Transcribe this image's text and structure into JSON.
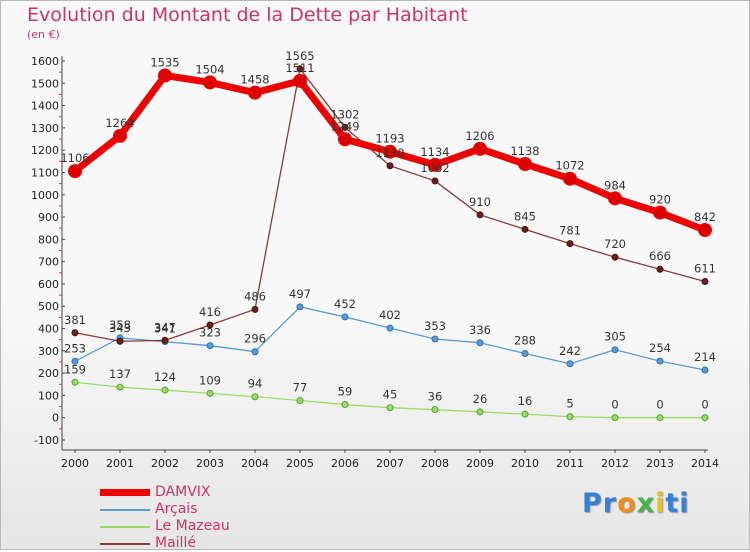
{
  "title": "Evolution du Montant de la Dette par Habitant",
  "unit": "(en €)",
  "logo": {
    "letters": [
      "P",
      "r",
      "o",
      "x",
      "i",
      "t",
      "i"
    ],
    "colors": [
      "#3a7fd5",
      "#3a7fd5",
      "#f28c1e",
      "#4bb04b",
      "#e8c21b",
      "#3a7fd5",
      "#3a7fd5"
    ]
  },
  "chart_data": {
    "type": "line",
    "title": "Evolution du Montant de la Dette par Habitant",
    "ylabel": "(en €)",
    "xlabel": "",
    "x": [
      "2000",
      "2001",
      "2002",
      "2003",
      "2004",
      "2005",
      "2006",
      "2007",
      "2008",
      "2009",
      "2010",
      "2011",
      "2012",
      "2013",
      "2014"
    ],
    "ylim": [
      -100,
      1600
    ],
    "yticks": [
      "-100",
      "0",
      "100",
      "200",
      "300",
      "400",
      "500",
      "600",
      "700",
      "800",
      "900",
      "1000",
      "1100",
      "1200",
      "1300",
      "1400",
      "1500",
      "1600"
    ],
    "grid": false,
    "legend_position": "bottom-left",
    "series": [
      {
        "name": "DAMVIX",
        "color": "#ee0000",
        "values": [
          1106,
          1264,
          1535,
          1504,
          1458,
          1511,
          1249,
          1193,
          1134,
          1206,
          1138,
          1072,
          984,
          920,
          842
        ],
        "labels": [
          "1106",
          "1264",
          "1535",
          "1504",
          "1458",
          "1511",
          "1249",
          "1193",
          "1134",
          "1206",
          "1138",
          "1072",
          "984",
          "920",
          "842"
        ]
      },
      {
        "name": "Arçais",
        "color": "#5b9bd5",
        "values": [
          253,
          358,
          341,
          323,
          296,
          497,
          452,
          402,
          353,
          336,
          288,
          242,
          305,
          254,
          214
        ],
        "labels": [
          "253",
          "358",
          "341",
          "323",
          "296",
          "497",
          "452",
          "402",
          "353",
          "336",
          "288",
          "242",
          "305",
          "254",
          "214"
        ]
      },
      {
        "name": "Le Mazeau",
        "color": "#99dd66",
        "values": [
          159,
          137,
          124,
          109,
          94,
          77,
          59,
          45,
          36,
          26,
          16,
          5,
          0,
          0,
          0
        ],
        "labels": [
          "159",
          "137",
          "124",
          "109",
          "94",
          "77",
          "59",
          "45",
          "36",
          "26",
          "16",
          "5",
          "0",
          "0",
          "0"
        ]
      },
      {
        "name": "Maillé",
        "color": "#8b3a3a",
        "values": [
          381,
          343,
          347,
          416,
          486,
          1565,
          1302,
          1130,
          1062,
          910,
          845,
          781,
          720,
          666,
          611
        ],
        "labels": [
          "381",
          "343",
          "347",
          "416",
          "486",
          "1565",
          "1302",
          "1130",
          "1062",
          "910",
          "845",
          "781",
          "720",
          "666",
          "611"
        ]
      }
    ]
  }
}
